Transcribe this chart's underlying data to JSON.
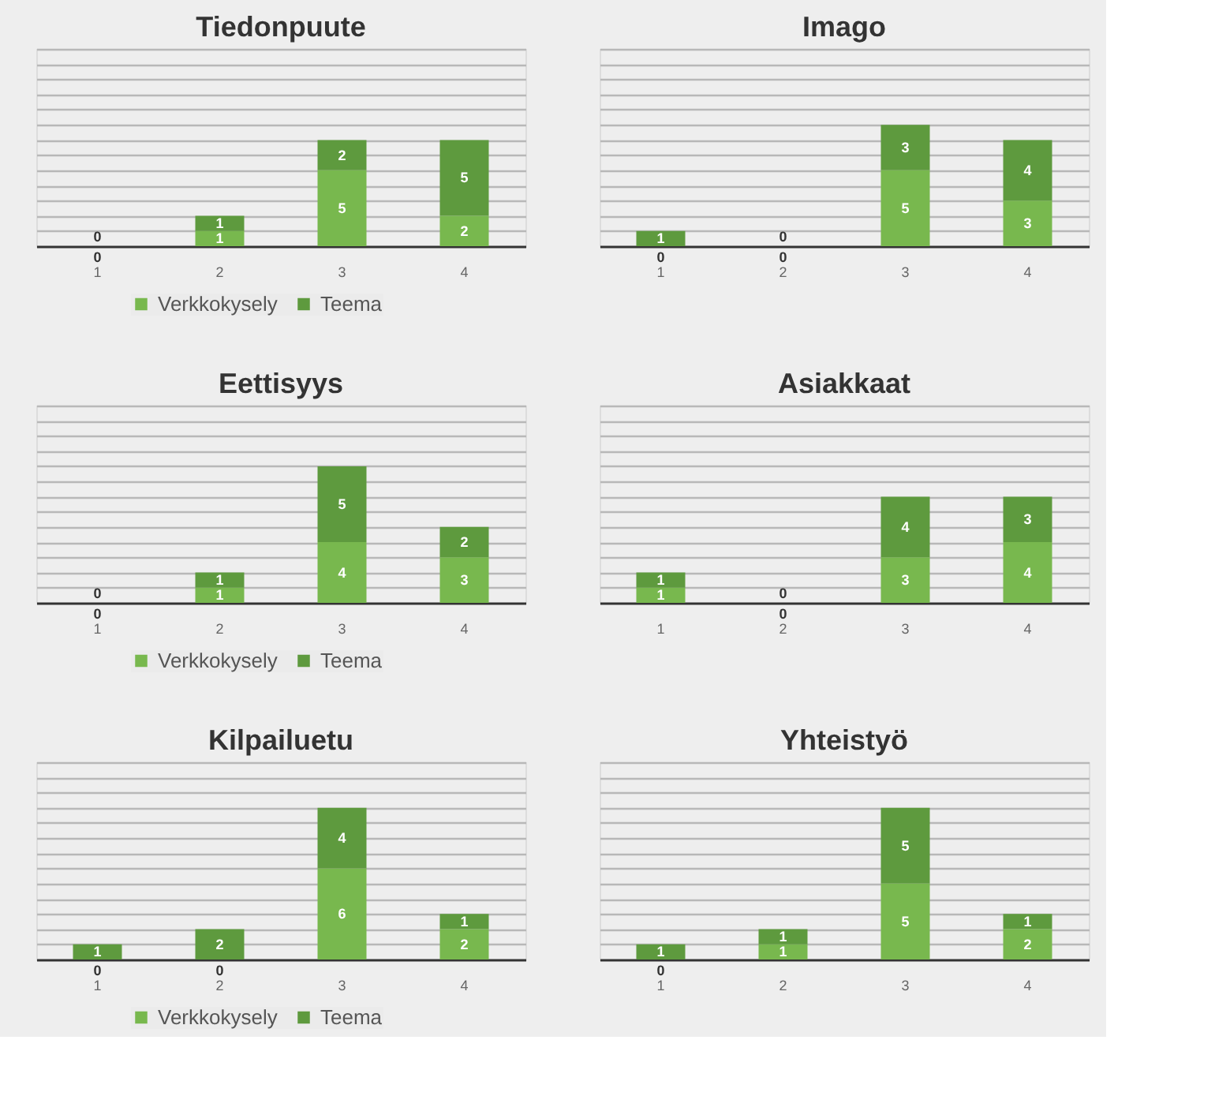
{
  "chart_data": [
    {
      "type": "bar",
      "title": "Tiedonpuute",
      "stacked": true,
      "categories": [
        "1",
        "2",
        "3",
        "4"
      ],
      "ylim": [
        0,
        13
      ],
      "yticks": [
        {
          "value": 1,
          "label": null
        },
        {
          "value": 2,
          "label": null
        },
        {
          "value": 3,
          "label": null
        },
        {
          "value": 4,
          "label": null
        },
        {
          "value": 5,
          "label": null
        },
        {
          "value": 6,
          "label": null
        },
        {
          "value": 7,
          "label": null
        },
        {
          "value": 8,
          "label": null
        },
        {
          "value": 9,
          "label": null
        },
        {
          "value": 10,
          "label": null
        },
        {
          "value": 11,
          "label": null
        },
        {
          "value": 12,
          "label": null
        },
        {
          "value": 13,
          "label": null
        }
      ],
      "grid": "y",
      "legend": "bottom",
      "data_labels": true,
      "tick_labels": "x",
      "series": [
        {
          "name": "Verkkokysely",
          "color": "#78b84e",
          "values": [
            0,
            1,
            5,
            2
          ]
        },
        {
          "name": "Teema",
          "color": "#5e9a3e",
          "values": [
            0,
            1,
            2,
            5
          ]
        }
      ]
    },
    {
      "type": "bar",
      "title": "Imago",
      "stacked": true,
      "categories": [
        "1",
        "2",
        "3",
        "4"
      ],
      "ylim": [
        0,
        13
      ],
      "yticks": [
        {
          "value": 1,
          "label": null
        },
        {
          "value": 2,
          "label": null
        },
        {
          "value": 3,
          "label": null
        },
        {
          "value": 4,
          "label": null
        },
        {
          "value": 5,
          "label": null
        },
        {
          "value": 6,
          "label": null
        },
        {
          "value": 7,
          "label": null
        },
        {
          "value": 8,
          "label": null
        },
        {
          "value": 9,
          "label": null
        },
        {
          "value": 10,
          "label": null
        },
        {
          "value": 11,
          "label": null
        },
        {
          "value": 12,
          "label": null
        },
        {
          "value": 13,
          "label": null
        }
      ],
      "grid": "y",
      "legend": "bottom",
      "data_labels": true,
      "tick_labels": "x",
      "series": [
        {
          "name": "Verkkokysely",
          "color": "#78b84e",
          "values": [
            0,
            0,
            5,
            3
          ]
        },
        {
          "name": "Teema",
          "color": "#5e9a3e",
          "values": [
            1,
            0,
            3,
            4
          ]
        }
      ]
    },
    {
      "type": "bar",
      "title": "Eettisyys",
      "stacked": true,
      "categories": [
        "1",
        "2",
        "3",
        "4"
      ],
      "ylim": [
        0,
        13
      ],
      "yticks": [
        {
          "value": 1,
          "label": null
        },
        {
          "value": 2,
          "label": null
        },
        {
          "value": 3,
          "label": null
        },
        {
          "value": 4,
          "label": null
        },
        {
          "value": 5,
          "label": null
        },
        {
          "value": 6,
          "label": null
        },
        {
          "value": 7,
          "label": null
        },
        {
          "value": 8,
          "label": null
        },
        {
          "value": 9,
          "label": null
        },
        {
          "value": 10,
          "label": null
        },
        {
          "value": 11,
          "label": null
        },
        {
          "value": 12,
          "label": null
        },
        {
          "value": 13,
          "label": null
        }
      ],
      "grid": "y",
      "legend": "bottom",
      "data_labels": true,
      "tick_labels": "x",
      "series": [
        {
          "name": "Verkkokysely",
          "color": "#78b84e",
          "values": [
            0,
            1,
            4,
            3
          ]
        },
        {
          "name": "Teema",
          "color": "#5e9a3e",
          "values": [
            0,
            1,
            5,
            2
          ]
        }
      ]
    },
    {
      "type": "bar",
      "title": "Asiakkaat",
      "stacked": true,
      "categories": [
        "1",
        "2",
        "3",
        "4"
      ],
      "ylim": [
        0,
        13
      ],
      "yticks": [
        {
          "value": 1,
          "label": null
        },
        {
          "value": 2,
          "label": null
        },
        {
          "value": 3,
          "label": null
        },
        {
          "value": 4,
          "label": null
        },
        {
          "value": 5,
          "label": null
        },
        {
          "value": 6,
          "label": null
        },
        {
          "value": 7,
          "label": null
        },
        {
          "value": 8,
          "label": null
        },
        {
          "value": 9,
          "label": null
        },
        {
          "value": 10,
          "label": null
        },
        {
          "value": 11,
          "label": null
        },
        {
          "value": 12,
          "label": null
        },
        {
          "value": 13,
          "label": null
        }
      ],
      "grid": "y",
      "legend": "bottom",
      "data_labels": true,
      "tick_labels": "x",
      "series": [
        {
          "name": "Verkkokysely",
          "color": "#78b84e",
          "values": [
            1,
            0,
            3,
            4
          ]
        },
        {
          "name": "Teema",
          "color": "#5e9a3e",
          "values": [
            1,
            0,
            4,
            3
          ]
        }
      ]
    },
    {
      "type": "bar",
      "title": "Kilpailuetu",
      "stacked": true,
      "categories": [
        "1",
        "2",
        "3",
        "4"
      ],
      "ylim": [
        0,
        13
      ],
      "yticks": [
        {
          "value": 1,
          "label": null
        },
        {
          "value": 2,
          "label": null
        },
        {
          "value": 3,
          "label": null
        },
        {
          "value": 4,
          "label": null
        },
        {
          "value": 5,
          "label": null
        },
        {
          "value": 6,
          "label": null
        },
        {
          "value": 7,
          "label": null
        },
        {
          "value": 8,
          "label": null
        },
        {
          "value": 9,
          "label": null
        },
        {
          "value": 10,
          "label": null
        },
        {
          "value": 11,
          "label": null
        },
        {
          "value": 12,
          "label": null
        },
        {
          "value": 13,
          "label": null
        }
      ],
      "grid": "y",
      "legend": "bottom",
      "data_labels": true,
      "tick_labels": "x",
      "series": [
        {
          "name": "Verkkokysely",
          "color": "#78b84e",
          "values": [
            0,
            0,
            6,
            2
          ]
        },
        {
          "name": "Teema",
          "color": "#5e9a3e",
          "values": [
            1,
            2,
            4,
            1
          ]
        }
      ]
    },
    {
      "type": "bar",
      "title": "Yhteistyö",
      "stacked": true,
      "categories": [
        "1",
        "2",
        "3",
        "4"
      ],
      "ylim": [
        0,
        13
      ],
      "yticks": [
        {
          "value": 1,
          "label": null
        },
        {
          "value": 2,
          "label": null
        },
        {
          "value": 3,
          "label": null
        },
        {
          "value": 4,
          "label": null
        },
        {
          "value": 5,
          "label": null
        },
        {
          "value": 6,
          "label": null
        },
        {
          "value": 7,
          "label": null
        },
        {
          "value": 8,
          "label": null
        },
        {
          "value": 9,
          "label": null
        },
        {
          "value": 10,
          "label": null
        },
        {
          "value": 11,
          "label": null
        },
        {
          "value": 12,
          "label": null
        },
        {
          "value": 13,
          "label": null
        }
      ],
      "grid": "y",
      "legend": "bottom",
      "data_labels": true,
      "tick_labels": "x",
      "series": [
        {
          "name": "Verkkokysely",
          "color": "#78b84e",
          "values": [
            0,
            1,
            5,
            2
          ]
        },
        {
          "name": "Teema",
          "color": "#5e9a3e",
          "values": [
            1,
            1,
            5,
            1
          ]
        }
      ]
    }
  ]
}
